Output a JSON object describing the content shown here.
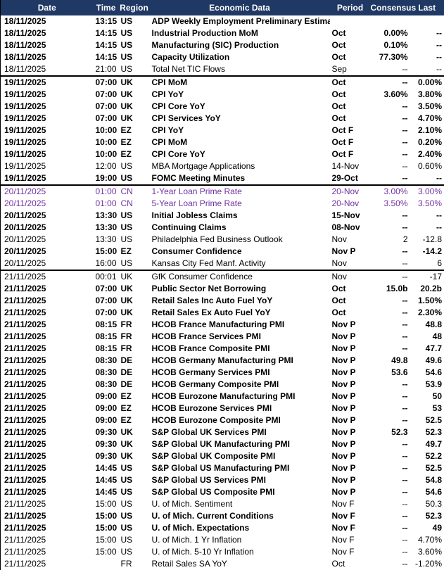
{
  "table": {
    "columns": [
      "Date",
      "Time",
      "Region",
      "Economic Data",
      "Period",
      "Consensus",
      "Last"
    ],
    "rows": [
      {
        "bold": true,
        "cells": [
          "18/11/2025",
          "13:15",
          "US",
          "ADP Weekly Employment Preliminary Estimate",
          null,
          null,
          null
        ]
      },
      {
        "bold": true,
        "cells": [
          "18/11/2025",
          "14:15",
          "US",
          "Industrial Production MoM",
          "Oct",
          "0.00%",
          "--"
        ]
      },
      {
        "bold": true,
        "cells": [
          "18/11/2025",
          "14:15",
          "US",
          "Manufacturing (SIC) Production",
          "Oct",
          "0.10%",
          "--"
        ]
      },
      {
        "bold": true,
        "cells": [
          "18/11/2025",
          "14:15",
          "US",
          "Capacity Utilization",
          "Oct",
          "77.30%",
          "--"
        ]
      },
      {
        "bold": false,
        "cells": [
          "18/11/2025",
          "21:00",
          "US",
          "Total Net TIC Flows",
          "Sep",
          "--",
          "--"
        ]
      },
      {
        "bold": true,
        "cells": [
          "19/11/2025",
          "07:00",
          "UK",
          "CPI MoM",
          "Oct",
          "--",
          "0.00%"
        ]
      },
      {
        "bold": true,
        "cells": [
          "19/11/2025",
          "07:00",
          "UK",
          "CPI YoY",
          "Oct",
          "3.60%",
          "3.80%"
        ]
      },
      {
        "bold": true,
        "cells": [
          "19/11/2025",
          "07:00",
          "UK",
          "CPI Core YoY",
          "Oct",
          "--",
          "3.50%"
        ]
      },
      {
        "bold": true,
        "cells": [
          "19/11/2025",
          "07:00",
          "UK",
          "CPI Services YoY",
          "Oct",
          "--",
          "4.70%"
        ]
      },
      {
        "bold": true,
        "cells": [
          "19/11/2025",
          "10:00",
          "EZ",
          "CPI YoY",
          "Oct F",
          "--",
          "2.10%"
        ]
      },
      {
        "bold": true,
        "cells": [
          "19/11/2025",
          "10:00",
          "EZ",
          "CPI MoM",
          "Oct F",
          "--",
          "0.20%"
        ]
      },
      {
        "bold": true,
        "cells": [
          "19/11/2025",
          "10:00",
          "EZ",
          "CPI Core YoY",
          "Oct F",
          "--",
          "2.40%"
        ]
      },
      {
        "bold": false,
        "cells": [
          "19/11/2025",
          "12:00",
          "US",
          "MBA Mortgage Applications",
          "14-Nov",
          "--",
          "0.60%"
        ]
      },
      {
        "bold": true,
        "cells": [
          "19/11/2025",
          "19:00",
          "US",
          "FOMC Meeting Minutes",
          "29-Oct",
          "--",
          "--"
        ]
      },
      {
        "bold": false,
        "color": "#7030a0",
        "cells": [
          "20/11/2025",
          "01:00",
          "CN",
          "1-Year Loan Prime Rate",
          "20-Nov",
          "3.00%",
          "3.00%"
        ]
      },
      {
        "bold": false,
        "color": "#7030a0",
        "cells": [
          "20/11/2025",
          "01:00",
          "CN",
          "5-Year Loan Prime Rate",
          "20-Nov",
          "3.50%",
          "3.50%"
        ]
      },
      {
        "bold": true,
        "cells": [
          "20/11/2025",
          "13:30",
          "US",
          "Initial Jobless Claims",
          "15-Nov",
          "--",
          "--"
        ]
      },
      {
        "bold": true,
        "cells": [
          "20/11/2025",
          "13:30",
          "US",
          "Continuing Claims",
          "08-Nov",
          "--",
          "--"
        ]
      },
      {
        "bold": false,
        "cells": [
          "20/11/2025",
          "13:30",
          "US",
          "Philadelphia Fed Business Outlook",
          "Nov",
          "2",
          "-12.8"
        ]
      },
      {
        "bold": true,
        "cells": [
          "20/11/2025",
          "15:00",
          "EZ",
          "Consumer Confidence",
          "Nov P",
          "--",
          "-14.2"
        ]
      },
      {
        "bold": false,
        "cells": [
          "20/11/2025",
          "16:00",
          "US",
          "Kansas City Fed Manf. Activity",
          "Nov",
          "--",
          "6"
        ]
      },
      {
        "bold": false,
        "cells": [
          "21/11/2025",
          "00:01",
          "UK",
          "GfK Consumer Confidence",
          "Nov",
          "--",
          "-17"
        ]
      },
      {
        "bold": true,
        "cells": [
          "21/11/2025",
          "07:00",
          "UK",
          "Public Sector Net Borrowing",
          "Oct",
          "15.0b",
          "20.2b"
        ]
      },
      {
        "bold": true,
        "cells": [
          "21/11/2025",
          "07:00",
          "UK",
          "Retail Sales Inc Auto Fuel YoY",
          "Oct",
          "--",
          "1.50%"
        ]
      },
      {
        "bold": true,
        "cells": [
          "21/11/2025",
          "07:00",
          "UK",
          "Retail Sales Ex Auto Fuel YoY",
          "Oct",
          "--",
          "2.30%"
        ]
      },
      {
        "bold": true,
        "cells": [
          "21/11/2025",
          "08:15",
          "FR",
          "HCOB France Manufacturing PMI",
          "Nov P",
          "--",
          "48.8"
        ]
      },
      {
        "bold": true,
        "cells": [
          "21/11/2025",
          "08:15",
          "FR",
          "HCOB France Services PMI",
          "Nov P",
          "--",
          "48"
        ]
      },
      {
        "bold": true,
        "cells": [
          "21/11/2025",
          "08:15",
          "FR",
          "HCOB France Composite PMI",
          "Nov P",
          "--",
          "47.7"
        ]
      },
      {
        "bold": true,
        "cells": [
          "21/11/2025",
          "08:30",
          "DE",
          "HCOB Germany Manufacturing PMI",
          "Nov P",
          "49.8",
          "49.6"
        ]
      },
      {
        "bold": true,
        "cells": [
          "21/11/2025",
          "08:30",
          "DE",
          "HCOB Germany Services PMI",
          "Nov P",
          "53.6",
          "54.6"
        ]
      },
      {
        "bold": true,
        "cells": [
          "21/11/2025",
          "08:30",
          "DE",
          "HCOB Germany Composite PMI",
          "Nov P",
          "--",
          "53.9"
        ]
      },
      {
        "bold": true,
        "cells": [
          "21/11/2025",
          "09:00",
          "EZ",
          "HCOB Eurozone Manufacturing PMI",
          "Nov P",
          "--",
          "50"
        ]
      },
      {
        "bold": true,
        "cells": [
          "21/11/2025",
          "09:00",
          "EZ",
          "HCOB Eurozone Services PMI",
          "Nov P",
          "--",
          "53"
        ]
      },
      {
        "bold": true,
        "cells": [
          "21/11/2025",
          "09:00",
          "EZ",
          "HCOB Eurozone Composite PMI",
          "Nov P",
          "--",
          "52.5"
        ]
      },
      {
        "bold": true,
        "cells": [
          "21/11/2025",
          "09:30",
          "UK",
          "S&P Global UK Services PMI",
          "Nov P",
          "52.3",
          "52.3"
        ]
      },
      {
        "bold": true,
        "cells": [
          "21/11/2025",
          "09:30",
          "UK",
          "S&P Global UK Manufacturing PMI",
          "Nov P",
          "--",
          "49.7"
        ]
      },
      {
        "bold": true,
        "cells": [
          "21/11/2025",
          "09:30",
          "UK",
          "S&P Global UK Composite PMI",
          "Nov P",
          "--",
          "52.2"
        ]
      },
      {
        "bold": true,
        "cells": [
          "21/11/2025",
          "14:45",
          "US",
          "S&P Global US Manufacturing PMI",
          "Nov P",
          "--",
          "52.5"
        ]
      },
      {
        "bold": true,
        "cells": [
          "21/11/2025",
          "14:45",
          "US",
          "S&P Global US Services PMI",
          "Nov P",
          "--",
          "54.8"
        ]
      },
      {
        "bold": true,
        "cells": [
          "21/11/2025",
          "14:45",
          "US",
          "S&P Global US Composite PMI",
          "Nov P",
          "--",
          "54.6"
        ]
      },
      {
        "bold": false,
        "cells": [
          "21/11/2025",
          "15:00",
          "US",
          "U. of Mich. Sentiment",
          "Nov F",
          "--",
          "50.3"
        ]
      },
      {
        "bold": true,
        "cells": [
          "21/11/2025",
          "15:00",
          "US",
          "U. of Mich. Current Conditions",
          "Nov F",
          "--",
          "52.3"
        ]
      },
      {
        "bold": true,
        "cells": [
          "21/11/2025",
          "15:00",
          "US",
          "U. of Mich. Expectations",
          "Nov F",
          "--",
          "49"
        ]
      },
      {
        "bold": false,
        "cells": [
          "21/11/2025",
          "15:00",
          "US",
          "U. of Mich. 1 Yr Inflation",
          "Nov F",
          "--",
          "4.70%"
        ]
      },
      {
        "bold": false,
        "cells": [
          "21/11/2025",
          "15:00",
          "US",
          "U. of Mich. 5-10 Yr Inflation",
          "Nov F",
          "--",
          "3.60%"
        ]
      },
      {
        "bold": false,
        "cells": [
          "21/11/2025",
          null,
          "FR",
          "Retail Sales SA YoY",
          "Oct",
          "--",
          "-1.20%"
        ]
      }
    ]
  }
}
